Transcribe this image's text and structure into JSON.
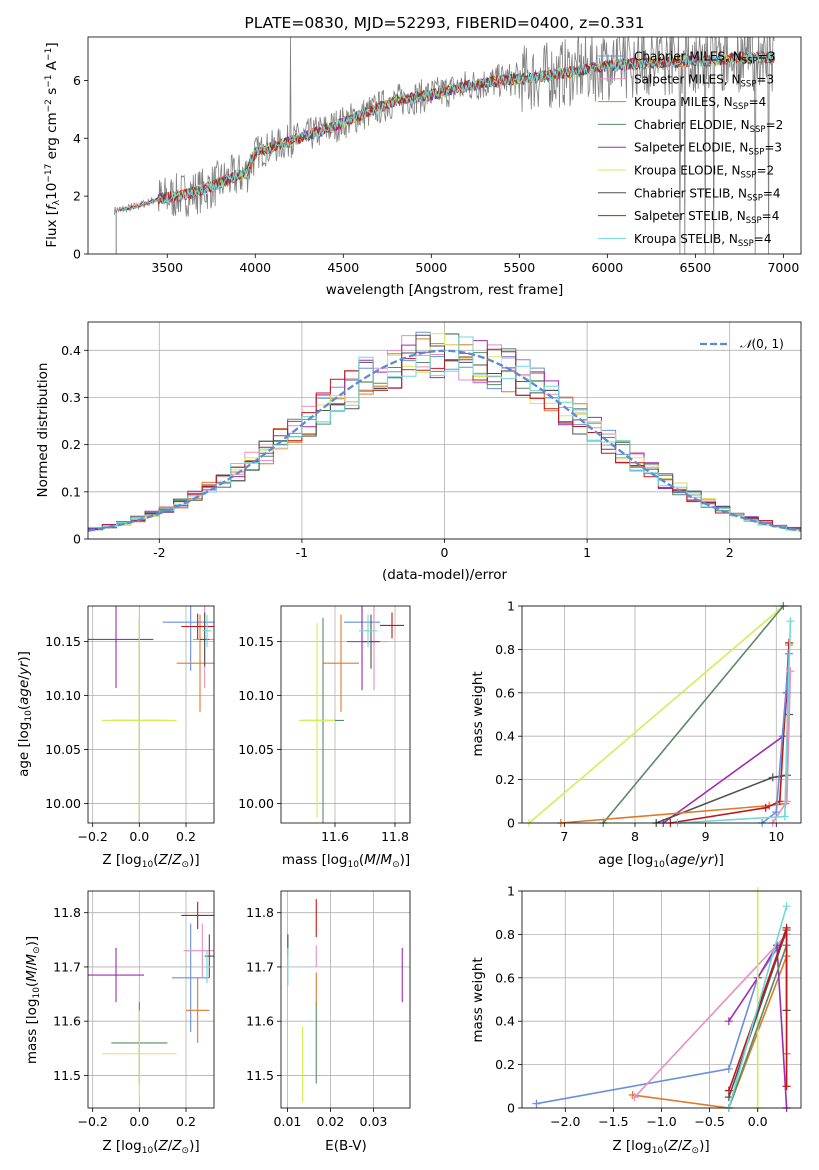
{
  "figure": {
    "title": "PLATE=0830, MJD=52293, FIBERID=0400, z=0.331"
  },
  "colors": {
    "chabrier_miles": "#6a8fdc",
    "salpeter_miles": "#e88fc0",
    "kroupa_miles": "#e0782a",
    "chabrier_elodie": "#5a8a66",
    "salpeter_elodie": "#a02cb0",
    "kroupa_elodie": "#d4ec5a",
    "chabrier_stelib": "#505050",
    "salpeter_stelib": "#c01818",
    "kroupa_stelib": "#70d8d8",
    "gaussian": "#5b8bd6",
    "data": "#808080"
  },
  "chart_data": [
    {
      "id": "spectrum",
      "type": "line",
      "xlabel": "wavelength [Angstrom, rest frame]",
      "ylabel": "Flux [f_λ 10^-17 erg cm^-2 s^-1 A^-1]",
      "xlim": [
        3050,
        7100
      ],
      "ylim": [
        0,
        7.5
      ],
      "xticks": [
        3500,
        4000,
        4500,
        5000,
        5500,
        6000,
        6500,
        7000
      ],
      "yticks": [
        0,
        2,
        4,
        6
      ],
      "continuum": [
        [
          3200,
          1.5
        ],
        [
          3300,
          1.6
        ],
        [
          3450,
          1.9
        ],
        [
          3550,
          2.0
        ],
        [
          3700,
          2.2
        ],
        [
          3850,
          2.6
        ],
        [
          3950,
          2.8
        ],
        [
          4000,
          3.5
        ],
        [
          4200,
          3.9
        ],
        [
          4400,
          4.3
        ],
        [
          4600,
          4.8
        ],
        [
          4800,
          5.3
        ],
        [
          5000,
          5.5
        ],
        [
          5200,
          5.8
        ],
        [
          5400,
          6.0
        ],
        [
          5600,
          6.1
        ],
        [
          5800,
          6.3
        ],
        [
          6000,
          6.5
        ],
        [
          6200,
          6.6
        ],
        [
          6400,
          6.65
        ],
        [
          6600,
          6.7
        ],
        [
          6800,
          6.8
        ],
        [
          6950,
          6.8
        ]
      ],
      "legend": {
        "position": "upper right",
        "entries": [
          "Chabrier MILES, N_SSP=3",
          "Salpeter MILES, N_SSP=3",
          "Kroupa MILES, N_SSP=4",
          "Chabrier ELODIE, N_SSP=2",
          "Salpeter ELODIE, N_SSP=3",
          "Kroupa ELODIE, N_SSP=2",
          "Chabrier STELIB, N_SSP=4",
          "Salpeter STELIB, N_SSP=4",
          "Kroupa STELIB, N_SSP=4"
        ]
      }
    },
    {
      "id": "residuals",
      "type": "line",
      "xlabel": "(data-model)/error",
      "ylabel": "Normed distribution",
      "xlim": [
        -2.5,
        2.5
      ],
      "ylim": [
        0,
        0.46
      ],
      "xticks": [
        -2,
        -1,
        0,
        1,
        2
      ],
      "yticks": [
        0.0,
        0.1,
        0.2,
        0.3,
        0.4
      ],
      "grid": true,
      "legend": {
        "position": "upper right",
        "entries": [
          "N(0,1)"
        ]
      },
      "gaussian": {
        "mean": 0,
        "sigma": 1
      },
      "histogram_bin_width": 0.1,
      "histogram_spread": 1.02
    },
    {
      "id": "age_vs_Z",
      "type": "scatter",
      "xlabel": "Z [log10(Z/Z_sun)]",
      "ylabel": "age  [log10(age/yr)]",
      "xlim": [
        -0.22,
        0.32
      ],
      "ylim": [
        9.982,
        10.183
      ],
      "xticks": [
        -0.2,
        0.0,
        0.2
      ],
      "xticklabels": [
        "−0.2",
        "0.0",
        "0.2"
      ],
      "yticks": [
        10.0,
        10.05,
        10.1,
        10.15
      ],
      "yticklabels": [
        "10.00",
        "10.05",
        "10.10",
        "10.15"
      ],
      "grid": true,
      "points": [
        {
          "model": "chabrier_miles",
          "x": 0.22,
          "y": 10.168,
          "xerr": 0.12,
          "yerr": 0.045
        },
        {
          "model": "salpeter_miles",
          "x": 0.28,
          "y": 10.152,
          "xerr": 0.05,
          "yerr": 0.045
        },
        {
          "model": "kroupa_miles",
          "x": 0.26,
          "y": 10.13,
          "xerr": 0.1,
          "yerr": 0.045
        },
        {
          "model": "chabrier_elodie",
          "x": 0.0,
          "y": 10.077,
          "xerr": 0.12,
          "yerr": 0.095
        },
        {
          "model": "salpeter_elodie",
          "x": -0.1,
          "y": 10.152,
          "xerr": 0.16,
          "yerr": 0.045
        },
        {
          "model": "kroupa_elodie",
          "x": 0.0,
          "y": 10.077,
          "xerr": 0.16,
          "yerr": 0.095
        },
        {
          "model": "chabrier_stelib",
          "x": 0.28,
          "y": 10.152,
          "xerr": 0.02,
          "yerr": 0.025
        },
        {
          "model": "salpeter_stelib",
          "x": 0.25,
          "y": 10.164,
          "xerr": 0.07,
          "yerr": 0.012
        },
        {
          "model": "kroupa_stelib",
          "x": 0.29,
          "y": 10.16,
          "xerr": 0.02,
          "yerr": 0.015
        }
      ]
    },
    {
      "id": "age_vs_mass",
      "type": "scatter",
      "xlabel": "mass [log10(M/M_sun)]",
      "xlim": [
        11.42,
        11.85
      ],
      "ylim": [
        9.982,
        10.183
      ],
      "xticks": [
        11.6,
        11.8
      ],
      "yticks": [
        10.0,
        10.05,
        10.1,
        10.15
      ],
      "yticklabels": [
        "10.00",
        "10.05",
        "10.10",
        "10.15"
      ],
      "grid": true,
      "points": [
        {
          "model": "chabrier_miles",
          "x": 11.69,
          "y": 10.168,
          "xerr": 0.06,
          "yerr": 0.04
        },
        {
          "model": "salpeter_miles",
          "x": 11.73,
          "y": 10.15,
          "xerr": 0.05,
          "yerr": 0.045
        },
        {
          "model": "kroupa_miles",
          "x": 11.62,
          "y": 10.13,
          "xerr": 0.06,
          "yerr": 0.045
        },
        {
          "model": "chabrier_elodie",
          "x": 11.56,
          "y": 10.077,
          "xerr": 0.07,
          "yerr": 0.095
        },
        {
          "model": "salpeter_elodie",
          "x": 11.69,
          "y": 10.15,
          "xerr": 0.05,
          "yerr": 0.045
        },
        {
          "model": "kroupa_elodie",
          "x": 11.54,
          "y": 10.077,
          "xerr": 0.06,
          "yerr": 0.09
        },
        {
          "model": "chabrier_stelib",
          "x": 11.72,
          "y": 10.15,
          "xerr": 0.03,
          "yerr": 0.025
        },
        {
          "model": "salpeter_stelib",
          "x": 11.79,
          "y": 10.165,
          "xerr": 0.04,
          "yerr": 0.012
        },
        {
          "model": "kroupa_stelib",
          "x": 11.71,
          "y": 10.16,
          "xerr": 0.03,
          "yerr": 0.015
        }
      ]
    },
    {
      "id": "mass_weight_vs_age",
      "type": "line",
      "xlabel": "age  [log10(age/yr)]",
      "ylabel": "mass weight",
      "xlim": [
        6.4,
        10.35
      ],
      "ylim": [
        0,
        1.0
      ],
      "xticks": [
        7,
        8,
        9,
        10
      ],
      "yticks": [
        0.0,
        0.2,
        0.4,
        0.6,
        0.8,
        1.0
      ],
      "grid": true,
      "series": [
        {
          "model": "kroupa_elodie",
          "x": [
            6.5,
            10.1
          ],
          "y": [
            0.0,
            1.0
          ]
        },
        {
          "model": "chabrier_elodie",
          "x": [
            7.55,
            10.1
          ],
          "y": [
            0.0,
            1.0
          ]
        },
        {
          "model": "salpeter_elodie",
          "x": [
            8.4,
            10.1,
            10.15
          ],
          "y": [
            0.0,
            0.4,
            0.6
          ]
        },
        {
          "model": "chabrier_stelib",
          "x": [
            8.3,
            9.95,
            10.15,
            10.18
          ],
          "y": [
            0.0,
            0.21,
            0.22,
            0.5
          ]
        },
        {
          "model": "kroupa_miles",
          "x": [
            6.95,
            9.9,
            10.13,
            10.18
          ],
          "y": [
            0.0,
            0.08,
            0.09,
            0.82
          ]
        },
        {
          "model": "salpeter_stelib",
          "x": [
            8.5,
            9.85,
            10.05,
            10.18
          ],
          "y": [
            0.0,
            0.07,
            0.1,
            0.83
          ]
        },
        {
          "model": "chabrier_miles",
          "x": [
            9.8,
            10.0,
            10.18
          ],
          "y": [
            0.0,
            0.05,
            0.78
          ]
        },
        {
          "model": "salpeter_miles",
          "x": [
            9.95,
            10.15,
            10.2
          ],
          "y": [
            0.0,
            0.1,
            0.7
          ]
        },
        {
          "model": "kroupa_stelib",
          "x": [
            8.6,
            10.12,
            10.2
          ],
          "y": [
            0.0,
            0.03,
            0.93
          ]
        }
      ]
    },
    {
      "id": "mass_vs_Z",
      "type": "scatter",
      "xlabel": "Z [log10(Z/Z_sun)]",
      "ylabel": "mass [log10(M/M_sun)]",
      "xlim": [
        -0.22,
        0.32
      ],
      "ylim": [
        11.44,
        11.84
      ],
      "xticks": [
        -0.2,
        0.0,
        0.2
      ],
      "xticklabels": [
        "−0.2",
        "0.0",
        "0.2"
      ],
      "yticks": [
        11.5,
        11.6,
        11.7,
        11.8
      ],
      "grid": true,
      "points": [
        {
          "model": "chabrier_miles",
          "x": 0.22,
          "y": 11.68,
          "xerr": 0.08,
          "yerr": 0.1
        },
        {
          "model": "salpeter_miles",
          "x": 0.27,
          "y": 11.73,
          "xerr": 0.08,
          "yerr": 0.05
        },
        {
          "model": "kroupa_miles",
          "x": 0.25,
          "y": 11.62,
          "xerr": 0.05,
          "yerr": 0.06
        },
        {
          "model": "chabrier_elodie",
          "x": 0.0,
          "y": 11.56,
          "xerr": 0.12,
          "yerr": 0.075
        },
        {
          "model": "salpeter_elodie",
          "x": -0.1,
          "y": 11.685,
          "xerr": 0.12,
          "yerr": 0.05
        },
        {
          "model": "kroupa_elodie",
          "x": 0.0,
          "y": 11.54,
          "xerr": 0.16,
          "yerr": 0.08
        },
        {
          "model": "chabrier_stelib",
          "x": 0.3,
          "y": 11.72,
          "xerr": 0.02,
          "yerr": 0.04
        },
        {
          "model": "salpeter_stelib",
          "x": 0.25,
          "y": 11.795,
          "xerr": 0.07,
          "yerr": 0.025
        },
        {
          "model": "kroupa_stelib",
          "x": 0.29,
          "y": 11.7,
          "xerr": 0.02,
          "yerr": 0.03
        }
      ]
    },
    {
      "id": "mass_vs_ebv",
      "type": "scatter",
      "xlabel": "E(B-V)",
      "xlim": [
        0.0085,
        0.0385
      ],
      "ylim": [
        11.44,
        11.84
      ],
      "xticks": [
        0.01,
        0.02,
        0.03
      ],
      "yticks": [
        11.5,
        11.6,
        11.7,
        11.8
      ],
      "grid": true,
      "points": [
        {
          "model": "chabrier_stelib",
          "x": 0.0101,
          "y": 11.74,
          "xerr": 0,
          "yerr": 0.02
        },
        {
          "model": "kroupa_stelib",
          "x": 0.0101,
          "y": 11.7,
          "xerr": 0,
          "yerr": 0.035
        },
        {
          "model": "kroupa_elodie",
          "x": 0.0135,
          "y": 11.52,
          "xerr": 0,
          "yerr": 0.07
        },
        {
          "model": "chabrier_elodie",
          "x": 0.0167,
          "y": 11.56,
          "xerr": 0,
          "yerr": 0.075
        },
        {
          "model": "salpeter_stelib",
          "x": 0.0167,
          "y": 11.79,
          "xerr": 0,
          "yerr": 0.035
        },
        {
          "model": "salpeter_miles",
          "x": 0.0167,
          "y": 11.72,
          "xerr": 0,
          "yerr": 0.02
        },
        {
          "model": "kroupa_miles",
          "x": 0.0167,
          "y": 11.66,
          "xerr": 0,
          "yerr": 0.03
        },
        {
          "model": "salpeter_elodie",
          "x": 0.0367,
          "y": 11.685,
          "xerr": 0,
          "yerr": 0.05
        }
      ]
    },
    {
      "id": "mass_weight_vs_Z",
      "type": "line",
      "xlabel": "Z [log10(Z/Z_sun)]",
      "ylabel": "mass weight",
      "xlim": [
        -2.45,
        0.45
      ],
      "ylim": [
        0,
        1.0
      ],
      "xticks": [
        -2.0,
        -1.5,
        -1.0,
        -0.5,
        0.0
      ],
      "xticklabels": [
        "−2.0",
        "−1.5",
        "−1.0",
        "−0.5",
        "0.0"
      ],
      "yticks": [
        0.0,
        0.2,
        0.4,
        0.6,
        0.8,
        1.0
      ],
      "grid": true,
      "series": [
        {
          "model": "chabrier_miles",
          "x": [
            -2.3,
            -0.3,
            0.0,
            0.3
          ],
          "y": [
            0.02,
            0.18,
            0.6,
            0.8
          ]
        },
        {
          "model": "kroupa_miles",
          "x": [
            -1.3,
            -0.3,
            0.3,
            0.3
          ],
          "y": [
            0.06,
            0.0,
            0.7,
            0.25
          ]
        },
        {
          "model": "salpeter_miles",
          "x": [
            -1.28,
            0.3,
            0.3
          ],
          "y": [
            0.05,
            0.8,
            0.1
          ]
        },
        {
          "model": "salpeter_elodie",
          "x": [
            -0.3,
            0.0,
            0.2,
            0.3
          ],
          "y": [
            0.4,
            0.6,
            0.75,
            0.0
          ]
        },
        {
          "model": "kroupa_elodie",
          "x": [
            0.0,
            0.0
          ],
          "y": [
            0.0,
            1.0
          ]
        },
        {
          "model": "chabrier_elodie",
          "x": [
            -0.3,
            0.3
          ],
          "y": [
            0.0,
            0.75
          ]
        },
        {
          "model": "chabrier_stelib",
          "x": [
            -0.3,
            0.3,
            0.3
          ],
          "y": [
            0.05,
            0.82,
            0.45
          ]
        },
        {
          "model": "salpeter_stelib",
          "x": [
            -0.3,
            0.3,
            0.3
          ],
          "y": [
            0.08,
            0.83,
            0.1
          ]
        },
        {
          "model": "kroupa_stelib",
          "x": [
            -0.3,
            0.3
          ],
          "y": [
            0.0,
            0.93
          ]
        }
      ]
    }
  ]
}
